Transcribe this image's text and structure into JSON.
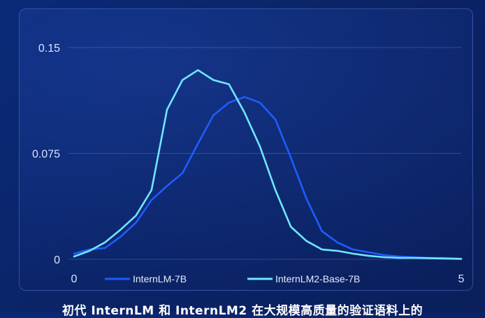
{
  "chart_data": {
    "type": "line",
    "x": [
      0,
      0.2,
      0.4,
      0.6,
      0.8,
      1.0,
      1.2,
      1.4,
      1.6,
      1.8,
      2.0,
      2.2,
      2.4,
      2.6,
      2.8,
      3.0,
      3.2,
      3.4,
      3.6,
      3.8,
      4.0,
      4.2,
      4.4,
      4.6,
      4.8,
      5.0
    ],
    "series": [
      {
        "name": "InternLM-7B",
        "color": "#1f5cff",
        "values": [
          0.004,
          0.007,
          0.008,
          0.016,
          0.026,
          0.042,
          0.052,
          0.061,
          0.082,
          0.102,
          0.111,
          0.115,
          0.111,
          0.099,
          0.072,
          0.043,
          0.02,
          0.012,
          0.007,
          0.005,
          0.003,
          0.002,
          0.0015,
          0.001,
          0.001,
          0.0005
        ]
      },
      {
        "name": "InternLM2-Base-7B",
        "color": "#6fe6ff",
        "values": [
          0.002,
          0.006,
          0.012,
          0.021,
          0.031,
          0.049,
          0.106,
          0.127,
          0.134,
          0.127,
          0.124,
          0.104,
          0.08,
          0.049,
          0.023,
          0.013,
          0.007,
          0.006,
          0.004,
          0.0025,
          0.0015,
          0.001,
          0.001,
          0.0008,
          0.0005,
          0.0003
        ]
      }
    ],
    "xlim": [
      0,
      5
    ],
    "ylim": [
      0,
      0.15
    ],
    "x_ticks": [
      "0",
      "5"
    ],
    "y_ticks": [
      "0",
      "0.075",
      "0.15"
    ],
    "grid": true,
    "legend": "bottom"
  },
  "caption": "初代 InternLM 和 InternLM2 在大规模高质量的验证语料上的"
}
